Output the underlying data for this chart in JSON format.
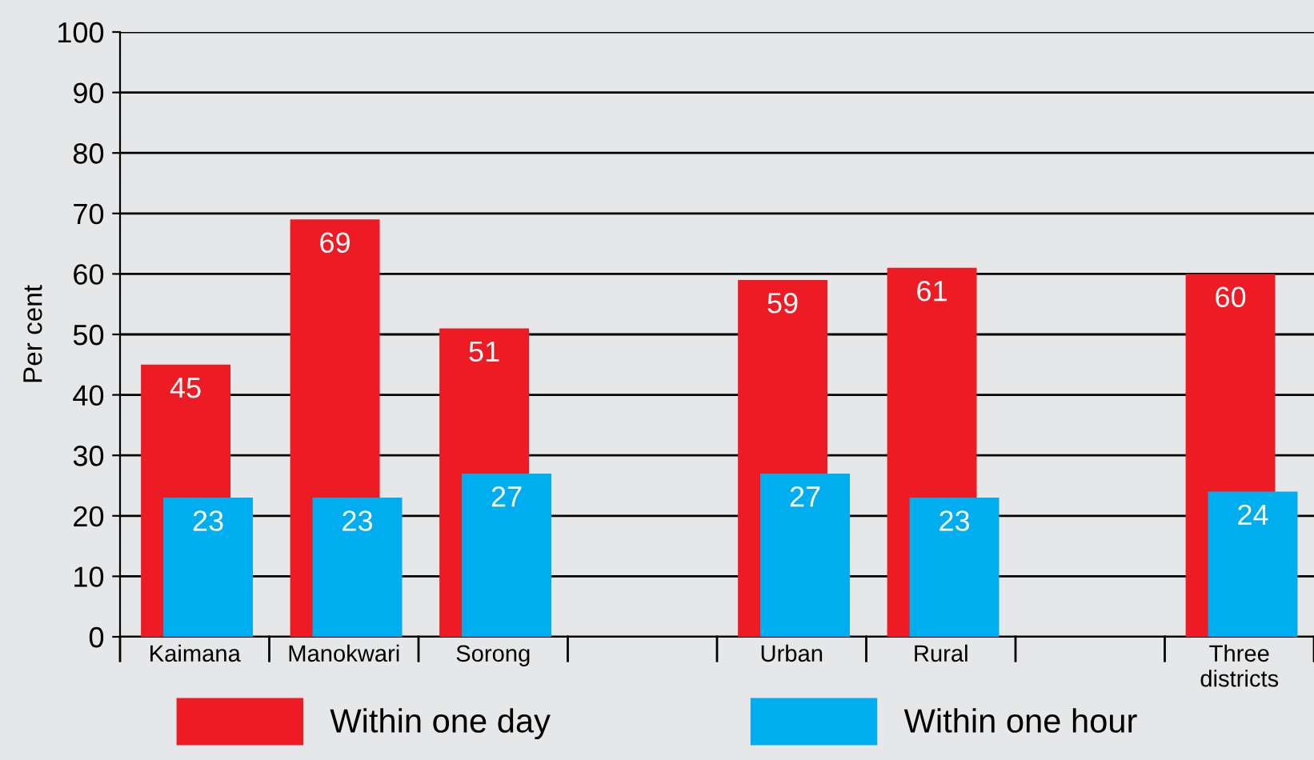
{
  "chart_data": {
    "type": "bar",
    "ylabel": "Per cent",
    "categories": [
      "Kaimana",
      "Manokwari",
      "Sorong",
      null,
      "Urban",
      "Rural",
      null,
      "Three\ndistricts"
    ],
    "series": [
      {
        "name": "Within one day",
        "color": "#ed1c24",
        "values": [
          45,
          69,
          51,
          null,
          59,
          61,
          null,
          60
        ]
      },
      {
        "name": "Within one hour",
        "color": "#00aeef",
        "values": [
          23,
          23,
          27,
          null,
          27,
          23,
          null,
          24
        ]
      }
    ],
    "ylim": [
      0,
      100
    ],
    "yticks": [
      0,
      10,
      20,
      30,
      40,
      50,
      60,
      70,
      80,
      90,
      100
    ],
    "grid": "y",
    "data_labels": true,
    "legend": "bottom"
  }
}
